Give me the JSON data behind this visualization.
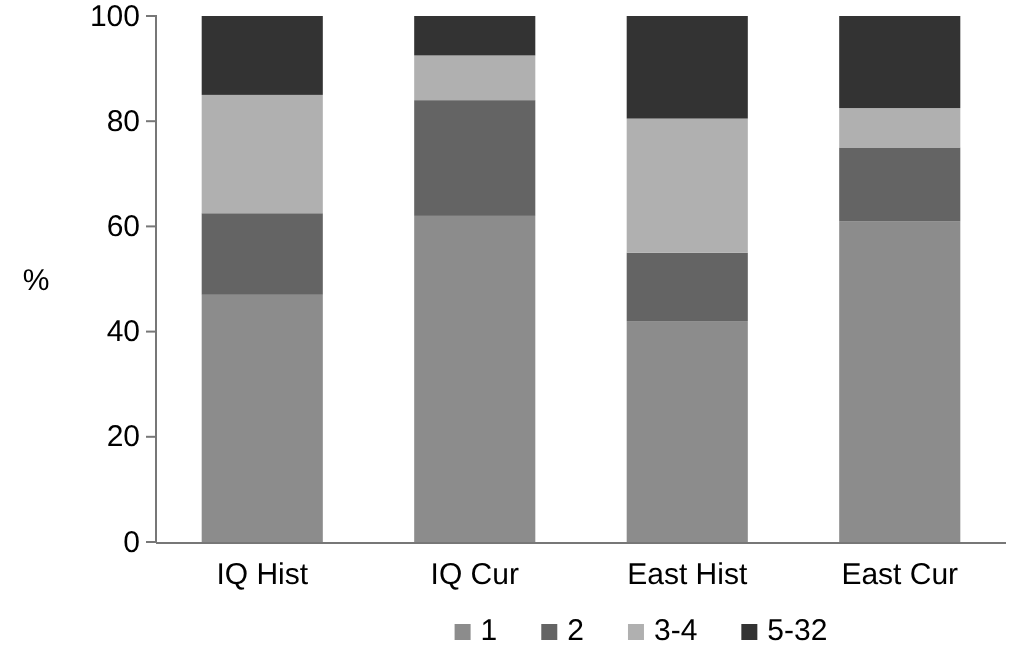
{
  "chart_data": {
    "type": "bar",
    "stacked": true,
    "ylabel": "%",
    "categories": [
      "IQ Hist",
      "IQ Cur",
      "East Hist",
      "East Cur"
    ],
    "series": [
      {
        "name": "1",
        "color": "#8c8c8c",
        "values": [
          47,
          62,
          42,
          61
        ]
      },
      {
        "name": "2",
        "color": "#646464",
        "values": [
          15.5,
          22,
          13,
          14
        ]
      },
      {
        "name": "3-4",
        "color": "#b0b0b0",
        "values": [
          22.5,
          8.5,
          25.5,
          7.5
        ]
      },
      {
        "name": "5-32",
        "color": "#333333",
        "values": [
          15,
          7.5,
          19.5,
          17.5
        ]
      }
    ],
    "ylim": [
      0,
      100
    ],
    "yticks": [
      0,
      20,
      40,
      60,
      80,
      100
    ],
    "legend": "bottom"
  }
}
